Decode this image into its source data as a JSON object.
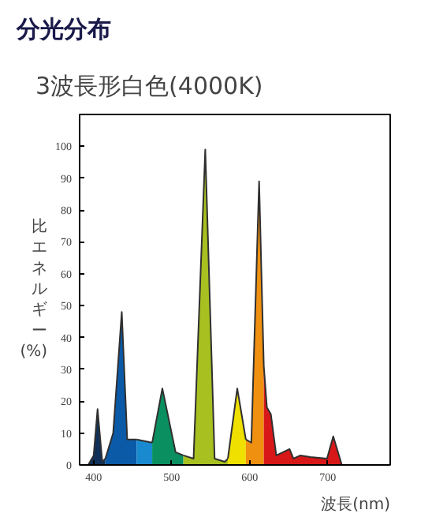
{
  "chart_data": {
    "type": "area",
    "title": "分光分布",
    "subtitle": "3波長形白色(4000K)",
    "xlabel": "波長(nm)",
    "ylabel": "比エネルギー(%)",
    "series": [
      {
        "color": "#10305a",
        "x": [
          393,
          400,
          405,
          411,
          415
        ],
        "values": [
          0,
          3,
          17.5,
          1,
          2
        ]
      },
      {
        "color": "#0a5aa8",
        "x": [
          415,
          425,
          436,
          443,
          455
        ],
        "values": [
          2,
          10,
          48,
          8,
          8
        ]
      },
      {
        "color": "#1a8ad0",
        "x": [
          455,
          465,
          475
        ],
        "values": [
          8,
          7.5,
          7
        ]
      },
      {
        "color": "#0a9060",
        "x": [
          475,
          488,
          505,
          515
        ],
        "values": [
          7,
          24,
          4,
          3
        ]
      },
      {
        "color": "#a8c020",
        "x": [
          515,
          528,
          543,
          555,
          568,
          572
        ],
        "values": [
          3,
          2,
          99,
          2,
          1,
          2
        ]
      },
      {
        "color": "#f0e000",
        "x": [
          572,
          584,
          595
        ],
        "values": [
          2,
          24,
          8
        ]
      },
      {
        "color": "#f09010",
        "x": [
          595,
          602,
          612,
          618
        ],
        "values": [
          8,
          7,
          89,
          31
        ]
      },
      {
        "color": "#d81818",
        "x": [
          618,
          622,
          627,
          634,
          651,
          656,
          665,
          678,
          699,
          707,
          718
        ],
        "values": [
          31,
          18,
          16,
          3,
          5,
          2,
          3,
          2.5,
          2,
          9,
          0
        ]
      }
    ],
    "xlim": [
      382,
      780
    ],
    "xticks": [
      400,
      500,
      600,
      700
    ],
    "ylim": [
      0,
      110
    ],
    "yticks": [
      0,
      10,
      20,
      30,
      40,
      50,
      60,
      70,
      80,
      90,
      100
    ],
    "grid": false
  }
}
